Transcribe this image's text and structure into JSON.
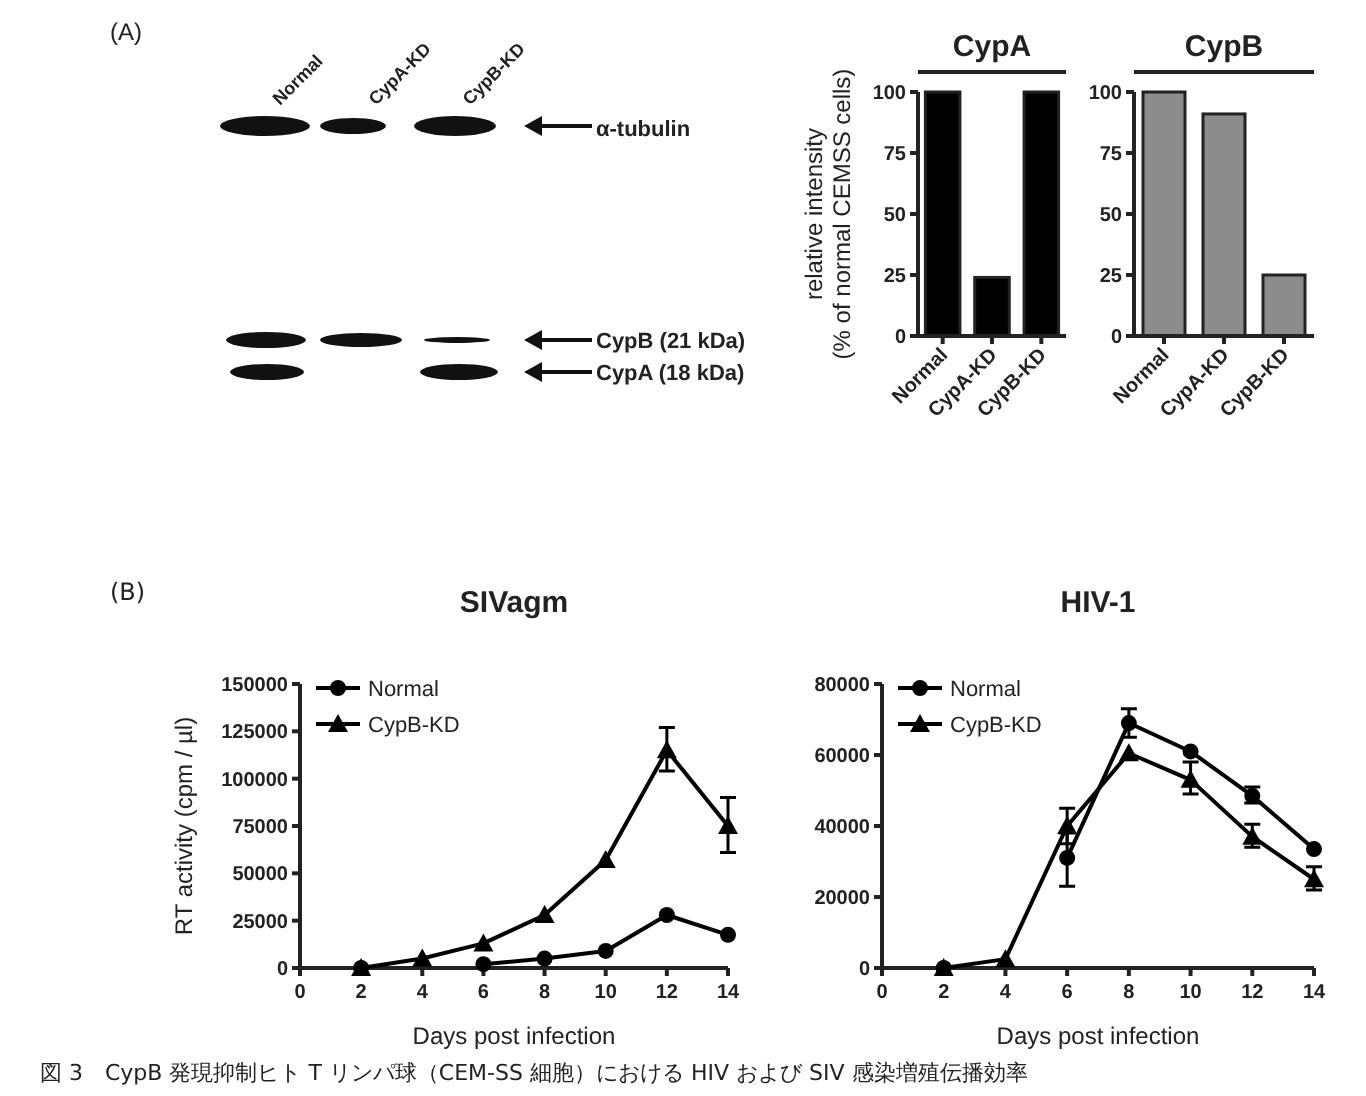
{
  "chart_data": [
    {
      "type": "other",
      "annotations": [
        "(A)",
        "Normal",
        "CypA-KD",
        "CypB-KD",
        "α-tubulin",
        "CypB (21 kDa)",
        "CypA (18 kDa)"
      ]
    },
    {
      "type": "bar",
      "title": "CypA",
      "ylabel": "relative intensity\n(% of normal CEMSS cells)",
      "categories": [
        "Normal",
        "CypA-KD",
        "CypB-KD"
      ],
      "values": [
        100,
        24,
        100
      ],
      "color": "#000000",
      "ylim": [
        0,
        100
      ],
      "yticks": [
        0,
        25,
        50,
        75,
        100
      ]
    },
    {
      "type": "bar",
      "title": "CypB",
      "categories": [
        "Normal",
        "CypA-KD",
        "CypB-KD"
      ],
      "values": [
        100,
        91,
        25
      ],
      "color": "#8c8c8c",
      "ylim": [
        0,
        100
      ],
      "yticks": [
        0,
        25,
        50,
        75,
        100
      ]
    },
    {
      "type": "line",
      "title": "SIVagm",
      "xlabel": "Days post infection",
      "ylabel": "RT activity (cpm / µl)",
      "annotations": [
        "(B)"
      ],
      "x": [
        2,
        4,
        6,
        8,
        10,
        12,
        14
      ],
      "xlim": [
        0,
        14
      ],
      "xticks": [
        0,
        2,
        4,
        6,
        8,
        10,
        12,
        14
      ],
      "ylim": [
        0,
        150000
      ],
      "yticks": [
        0,
        25000,
        50000,
        75000,
        100000,
        125000,
        150000
      ],
      "legend": "top left",
      "series": [
        {
          "name": "Normal",
          "color": "#000000",
          "marker": "circle",
          "values": [
            0,
            null,
            2000,
            5000,
            9000,
            28000,
            17500
          ]
        },
        {
          "name": "CypB-KD",
          "color": "#000000",
          "marker": "triangle",
          "values": [
            0,
            5000,
            13000,
            28000,
            57000,
            115000,
            75000
          ],
          "errors": [
            null,
            null,
            null,
            null,
            null,
            [
              104000,
              127000
            ],
            [
              61000,
              90000
            ]
          ]
        }
      ]
    },
    {
      "type": "line",
      "title": "HIV-1",
      "xlabel": "Days post infection",
      "annotations": [
        "図 3　CypB 発現抑制ヒト T リンパ球（CEM-SS 細胞）における HIV および SIV 感染増殖伝播効率"
      ],
      "x": [
        2,
        4,
        6,
        8,
        10,
        12,
        14
      ],
      "xlim": [
        0,
        14
      ],
      "xticks": [
        0,
        2,
        4,
        6,
        8,
        10,
        12,
        14
      ],
      "ylim": [
        0,
        80000
      ],
      "yticks": [
        0,
        20000,
        40000,
        60000,
        80000
      ],
      "legend": "top left",
      "series": [
        {
          "name": "Normal",
          "color": "#000000",
          "marker": "circle",
          "values": [
            0,
            null,
            31000,
            69000,
            61000,
            48500,
            33500
          ],
          "errors": [
            null,
            null,
            [
              23000,
              38000
            ],
            [
              65000,
              73000
            ],
            null,
            [
              46500,
              51000
            ],
            null
          ]
        },
        {
          "name": "CypB-KD",
          "color": "#000000",
          "marker": "triangle",
          "values": [
            0,
            2500,
            40000,
            60500,
            53000,
            37000,
            25000
          ],
          "errors": [
            null,
            null,
            [
              35000,
              45000
            ],
            null,
            [
              49000,
              58000
            ],
            [
              34000,
              40500
            ],
            [
              22000,
              28500
            ]
          ]
        }
      ]
    }
  ]
}
